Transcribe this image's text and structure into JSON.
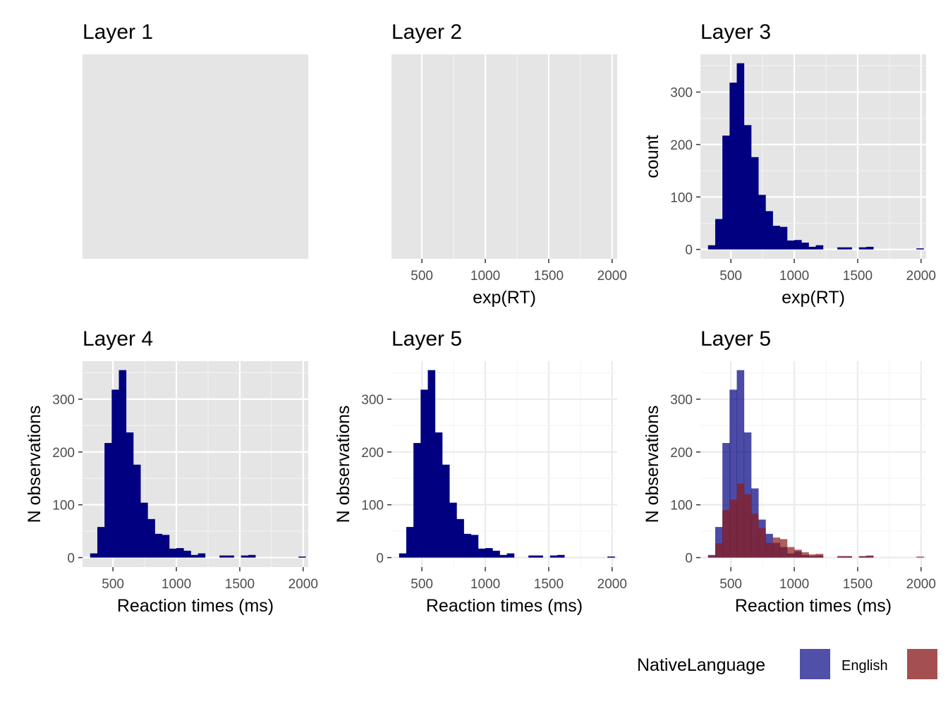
{
  "chart_data": [
    {
      "type": "bar",
      "title": "Layer 1",
      "xlabel": "",
      "ylabel": "",
      "theme": "grey",
      "show_x_axis": false,
      "show_y_axis": false,
      "grid": false,
      "series": []
    },
    {
      "type": "bar",
      "title": "Layer 2",
      "xlabel": "exp(RT)",
      "ylabel": "",
      "theme": "grey",
      "show_x_axis": true,
      "show_y_axis": false,
      "grid": true,
      "xlim": [
        260,
        2040
      ],
      "xticks": [
        500,
        1000,
        1500,
        2000
      ],
      "series": []
    },
    {
      "type": "bar",
      "title": "Layer 3",
      "xlabel": "exp(RT)",
      "ylabel": "count",
      "theme": "grey",
      "show_x_axis": true,
      "show_y_axis": true,
      "grid": true,
      "xlim": [
        260,
        2040
      ],
      "ylim": [
        -18,
        372
      ],
      "xticks": [
        500,
        1000,
        1500,
        2000
      ],
      "yticks": [
        0,
        100,
        200,
        300
      ],
      "series": [
        {
          "color": "#000080",
          "opacity": 1,
          "counts": [
            8,
            58,
            217,
            318,
            355,
            237,
            176,
            104,
            73,
            45,
            43,
            17,
            18,
            13,
            5,
            8,
            0,
            0,
            4,
            4,
            0,
            4,
            5,
            0,
            0,
            0,
            0,
            0,
            0,
            2
          ]
        }
      ]
    },
    {
      "type": "bar",
      "title": "Layer 4",
      "xlabel": "Reaction times (ms)",
      "ylabel": "N observations",
      "theme": "grey",
      "show_x_axis": true,
      "show_y_axis": true,
      "grid": true,
      "xlim": [
        260,
        2040
      ],
      "ylim": [
        -18,
        372
      ],
      "xticks": [
        500,
        1000,
        1500,
        2000
      ],
      "yticks": [
        0,
        100,
        200,
        300
      ],
      "series": [
        {
          "color": "#000080",
          "opacity": 1,
          "counts": [
            8,
            58,
            217,
            318,
            355,
            237,
            176,
            104,
            73,
            45,
            43,
            17,
            18,
            13,
            5,
            8,
            0,
            0,
            4,
            4,
            0,
            4,
            5,
            0,
            0,
            0,
            0,
            0,
            0,
            2
          ]
        }
      ]
    },
    {
      "type": "bar",
      "title": "Layer 5",
      "xlabel": "Reaction times (ms)",
      "ylabel": "N observations",
      "theme": "minimal",
      "show_x_axis": true,
      "show_y_axis": true,
      "grid": true,
      "xlim": [
        260,
        2040
      ],
      "ylim": [
        -18,
        372
      ],
      "xticks": [
        500,
        1000,
        1500,
        2000
      ],
      "yticks": [
        0,
        100,
        200,
        300
      ],
      "series": [
        {
          "color": "#000080",
          "opacity": 1,
          "counts": [
            8,
            58,
            217,
            318,
            355,
            237,
            176,
            104,
            73,
            45,
            43,
            17,
            18,
            13,
            5,
            8,
            0,
            0,
            4,
            4,
            0,
            4,
            5,
            0,
            0,
            0,
            0,
            0,
            0,
            2
          ]
        }
      ]
    },
    {
      "type": "bar",
      "title": "Layer 5",
      "xlabel": "Reaction times (ms)",
      "ylabel": "N observations",
      "theme": "minimal",
      "show_x_axis": true,
      "show_y_axis": true,
      "grid": true,
      "xlim": [
        260,
        2040
      ],
      "ylim": [
        -18,
        372
      ],
      "xticks": [
        500,
        1000,
        1500,
        2000
      ],
      "yticks": [
        0,
        100,
        200,
        300
      ],
      "series": [
        {
          "name": "English",
          "color": "#000080",
          "opacity": 0.7,
          "counts": [
            5,
            58,
            217,
            318,
            355,
            237,
            131,
            72,
            45,
            28,
            20,
            8,
            12,
            5,
            3,
            4,
            0,
            0,
            2,
            2,
            0,
            2,
            3,
            0,
            0,
            0,
            0,
            0,
            0,
            0
          ]
        },
        {
          "color": "#8b1a1a",
          "opacity": 0.7,
          "counts": [
            3,
            27,
            90,
            110,
            140,
            120,
            83,
            56,
            28,
            38,
            35,
            20,
            15,
            10,
            6,
            7,
            0,
            0,
            3,
            3,
            0,
            3,
            4,
            0,
            0,
            0,
            0,
            0,
            0,
            2
          ]
        }
      ]
    }
  ],
  "histogram_bins": {
    "start": 320,
    "width": 56.667
  },
  "legend": {
    "title": "NativeLanguage",
    "items": [
      {
        "label": "English",
        "color": "#5050a8"
      },
      {
        "label": "",
        "color": "#a55050"
      }
    ]
  }
}
